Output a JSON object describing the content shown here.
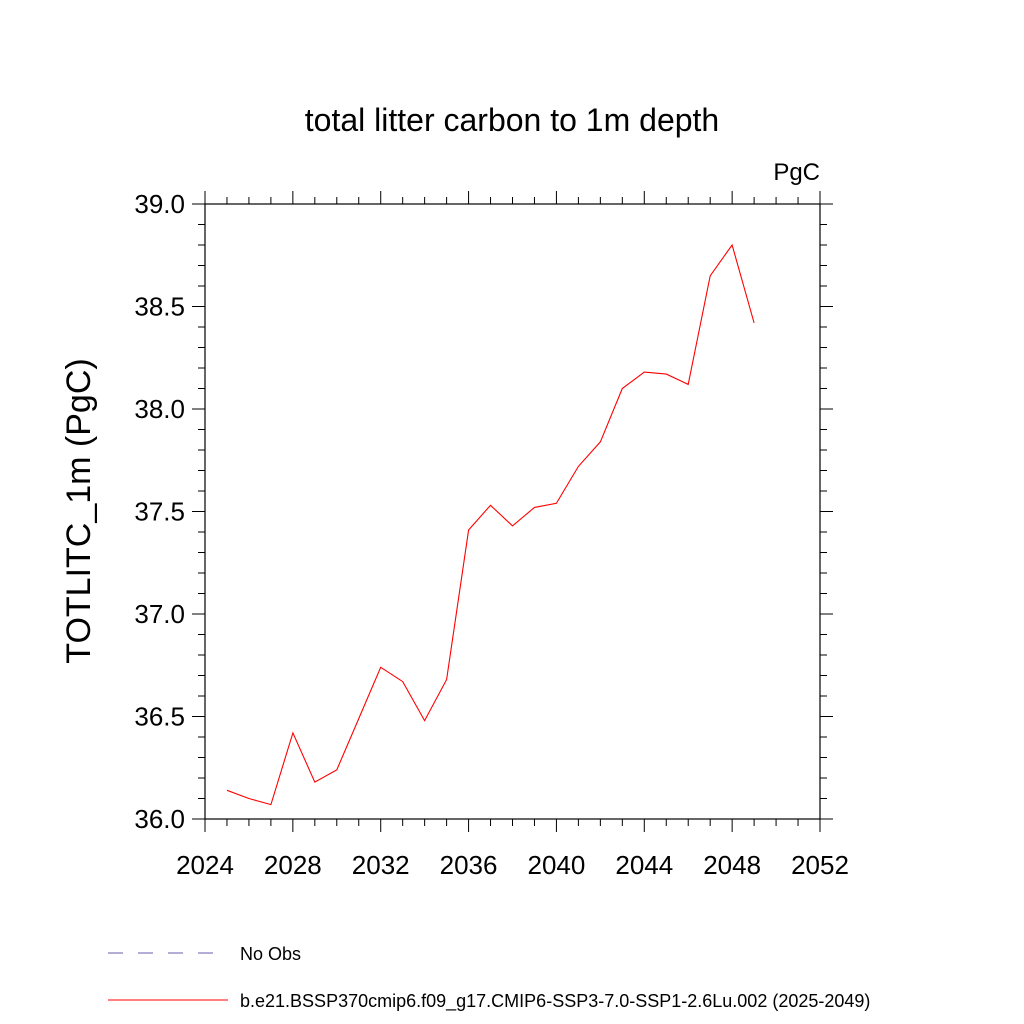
{
  "chart_data": {
    "type": "line",
    "title": "total litter carbon to 1m depth",
    "units": "PgC",
    "xlabel": "",
    "ylabel": "TOTLITC_1m  (PgC)",
    "xlim": [
      2024,
      2052
    ],
    "ylim": [
      36.0,
      39.0
    ],
    "x_ticks": [
      2024,
      2028,
      2032,
      2036,
      2040,
      2044,
      2048,
      2052
    ],
    "y_ticks": [
      "36.0",
      "36.5",
      "37.0",
      "37.5",
      "38.0",
      "38.5",
      "39.0"
    ],
    "grid": false,
    "legend_position": "bottom",
    "series": [
      {
        "name": "b.e21.BSSP370cmip6.f09_g17.CMIP6-SSP3-7.0-SSP1-2.6Lu.002 (2025-2049)",
        "color": "#ff0000",
        "style": "solid",
        "x": [
          2025,
          2026,
          2027,
          2028,
          2029,
          2030,
          2031,
          2032,
          2033,
          2034,
          2035,
          2036,
          2037,
          2038,
          2039,
          2040,
          2041,
          2042,
          2043,
          2044,
          2045,
          2046,
          2047,
          2048,
          2049
        ],
        "y": [
          36.14,
          36.1,
          36.07,
          36.42,
          36.18,
          36.24,
          36.49,
          36.74,
          36.67,
          36.48,
          36.68,
          37.41,
          37.53,
          37.43,
          37.52,
          37.54,
          37.72,
          37.84,
          38.1,
          38.18,
          38.17,
          38.12,
          38.65,
          38.8,
          38.42
        ]
      }
    ],
    "legend": [
      {
        "label": "No Obs",
        "color": "#6b5bb0",
        "style": "dashed"
      },
      {
        "label": "b.e21.BSSP370cmip6.f09_g17.CMIP6-SSP3-7.0-SSP1-2.6Lu.002 (2025-2049)",
        "color": "#ff0000",
        "style": "solid"
      }
    ]
  }
}
